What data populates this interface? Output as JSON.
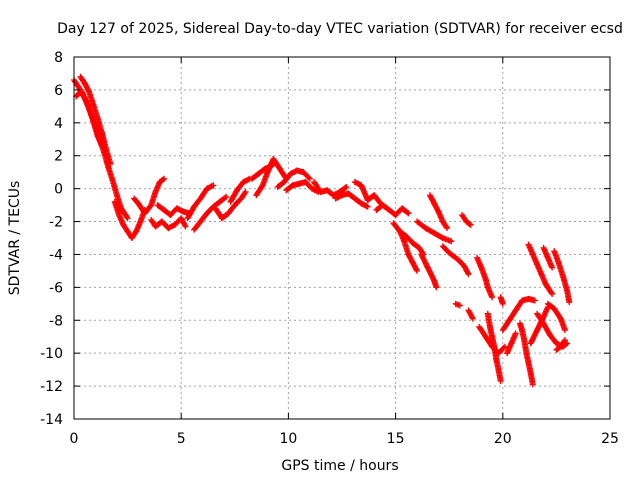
{
  "chart_data": {
    "type": "scatter",
    "title": "Day 127 of 2025, Sidereal Day-to-day VTEC variation (SDTVAR) for receiver ecsd",
    "xlabel": "GPS time / hours",
    "ylabel": "SDTVAR / TECUs",
    "xlim": [
      0,
      25
    ],
    "ylim": [
      -14,
      8
    ],
    "xticks": [
      0,
      5,
      10,
      15,
      20,
      25
    ],
    "yticks": [
      -14,
      -12,
      -10,
      -8,
      -6,
      -4,
      -2,
      0,
      2,
      4,
      6,
      8
    ],
    "grid": true,
    "marker": "+",
    "color": "#ff0000",
    "series": [
      {
        "name": "SDTVAR",
        "tracks": [
          [
            [
              0.0,
              6.6
            ],
            [
              0.2,
              6.2
            ],
            [
              0.4,
              5.8
            ],
            [
              0.6,
              5.2
            ],
            [
              0.8,
              4.5
            ],
            [
              1.0,
              3.8
            ],
            [
              1.2,
              3.0
            ],
            [
              1.4,
              2.2
            ],
            [
              1.6,
              1.3
            ],
            [
              1.8,
              0.5
            ],
            [
              2.0,
              -0.4
            ],
            [
              2.2,
              -1.2
            ],
            [
              2.5,
              -1.8
            ]
          ],
          [
            [
              0.3,
              6.8
            ],
            [
              0.5,
              6.4
            ],
            [
              0.7,
              5.9
            ],
            [
              0.9,
              5.1
            ],
            [
              1.1,
              4.3
            ],
            [
              1.3,
              3.4
            ],
            [
              1.5,
              2.4
            ],
            [
              1.7,
              1.5
            ]
          ],
          [
            [
              0.1,
              5.6
            ],
            [
              0.3,
              5.9
            ],
            [
              0.5,
              5.5
            ],
            [
              0.7,
              4.9
            ],
            [
              0.9,
              4.1
            ],
            [
              1.1,
              3.2
            ],
            [
              1.3,
              2.6
            ]
          ],
          [
            [
              1.9,
              -0.8
            ],
            [
              2.1,
              -1.6
            ],
            [
              2.3,
              -2.2
            ],
            [
              2.5,
              -2.6
            ],
            [
              2.7,
              -3.0
            ],
            [
              2.9,
              -2.6
            ],
            [
              3.1,
              -2.0
            ],
            [
              3.3,
              -1.3
            ]
          ],
          [
            [
              2.8,
              -0.6
            ],
            [
              3.0,
              -0.9
            ],
            [
              3.3,
              -1.5
            ],
            [
              3.6,
              -1.0
            ],
            [
              3.8,
              -0.2
            ],
            [
              4.0,
              0.4
            ],
            [
              4.2,
              0.6
            ]
          ],
          [
            [
              3.6,
              -1.9
            ],
            [
              3.8,
              -2.3
            ],
            [
              4.1,
              -2.0
            ],
            [
              4.4,
              -2.4
            ],
            [
              4.7,
              -2.2
            ],
            [
              5.0,
              -1.8
            ],
            [
              5.2,
              -2.3
            ]
          ],
          [
            [
              3.9,
              -1.0
            ],
            [
              4.2,
              -1.3
            ],
            [
              4.5,
              -1.6
            ],
            [
              4.8,
              -1.2
            ],
            [
              5.1,
              -1.4
            ],
            [
              5.4,
              -1.5
            ]
          ],
          [
            [
              5.3,
              -1.8
            ],
            [
              5.6,
              -1.1
            ],
            [
              5.9,
              -0.6
            ],
            [
              6.2,
              0.0
            ],
            [
              6.5,
              0.2
            ]
          ],
          [
            [
              5.6,
              -2.5
            ],
            [
              5.9,
              -2.0
            ],
            [
              6.2,
              -1.5
            ],
            [
              6.5,
              -1.1
            ],
            [
              6.8,
              -0.8
            ],
            [
              7.1,
              -0.5
            ]
          ],
          [
            [
              6.6,
              -1.2
            ],
            [
              6.9,
              -1.8
            ],
            [
              7.2,
              -1.5
            ],
            [
              7.5,
              -1.0
            ],
            [
              7.8,
              -0.6
            ],
            [
              8.0,
              -0.2
            ]
          ],
          [
            [
              7.3,
              -0.8
            ],
            [
              7.6,
              -0.1
            ],
            [
              7.9,
              0.4
            ],
            [
              8.2,
              0.6
            ]
          ],
          [
            [
              8.3,
              0.6
            ],
            [
              8.6,
              0.9
            ],
            [
              8.9,
              1.2
            ],
            [
              9.2,
              1.4
            ],
            [
              9.4,
              1.6
            ]
          ],
          [
            [
              8.5,
              -0.4
            ],
            [
              8.8,
              0.2
            ],
            [
              9.0,
              0.9
            ],
            [
              9.3,
              1.8
            ],
            [
              9.6,
              1.2
            ],
            [
              9.9,
              0.6
            ]
          ],
          [
            [
              9.5,
              0.1
            ],
            [
              9.8,
              0.4
            ],
            [
              10.1,
              0.9
            ],
            [
              10.4,
              1.1
            ],
            [
              10.7,
              1.0
            ],
            [
              11.0,
              0.6
            ]
          ],
          [
            [
              9.9,
              -0.1
            ],
            [
              10.2,
              0.2
            ],
            [
              10.5,
              0.3
            ],
            [
              10.8,
              0.4
            ],
            [
              11.1,
              0.0
            ],
            [
              11.4,
              -0.2
            ]
          ],
          [
            [
              11.2,
              0.4
            ],
            [
              11.5,
              -0.2
            ],
            [
              11.8,
              -0.1
            ],
            [
              12.1,
              -0.4
            ],
            [
              12.4,
              -0.2
            ],
            [
              12.7,
              0.1
            ]
          ],
          [
            [
              12.2,
              -0.6
            ],
            [
              12.5,
              -0.4
            ],
            [
              12.8,
              -0.3
            ],
            [
              13.1,
              -0.6
            ],
            [
              13.4,
              -0.9
            ],
            [
              13.7,
              -1.1
            ]
          ],
          [
            [
              13.1,
              0.4
            ],
            [
              13.4,
              0.2
            ],
            [
              13.7,
              -0.7
            ],
            [
              14.0,
              -0.4
            ],
            [
              14.3,
              -0.9
            ]
          ],
          [
            [
              14.1,
              -1.3
            ],
            [
              14.4,
              -1.0
            ],
            [
              14.7,
              -1.3
            ],
            [
              15.0,
              -1.6
            ],
            [
              15.3,
              -1.2
            ],
            [
              15.6,
              -1.5
            ]
          ],
          [
            [
              14.9,
              -2.1
            ],
            [
              15.2,
              -2.6
            ],
            [
              15.5,
              -2.9
            ],
            [
              15.8,
              -3.3
            ],
            [
              16.1,
              -3.6
            ],
            [
              16.3,
              -4.0
            ]
          ],
          [
            [
              15.2,
              -2.6
            ],
            [
              15.4,
              -3.2
            ],
            [
              15.6,
              -4.0
            ],
            [
              15.8,
              -4.5
            ],
            [
              16.0,
              -5.0
            ]
          ],
          [
            [
              16.2,
              -4.0
            ],
            [
              16.5,
              -4.8
            ],
            [
              16.8,
              -5.6
            ],
            [
              16.9,
              -6.0
            ]
          ],
          [
            [
              16.0,
              -2.0
            ],
            [
              16.4,
              -2.4
            ],
            [
              16.8,
              -2.7
            ],
            [
              17.2,
              -3.0
            ],
            [
              17.6,
              -3.2
            ]
          ],
          [
            [
              16.6,
              -0.4
            ],
            [
              16.8,
              -0.9
            ],
            [
              17.0,
              -1.4
            ],
            [
              17.2,
              -2.0
            ],
            [
              17.4,
              -2.4
            ]
          ],
          [
            [
              17.2,
              -3.5
            ],
            [
              17.5,
              -3.9
            ],
            [
              17.9,
              -4.3
            ],
            [
              18.2,
              -4.7
            ],
            [
              18.4,
              -5.2
            ]
          ],
          [
            [
              18.1,
              -1.6
            ],
            [
              18.3,
              -2.0
            ],
            [
              18.5,
              -2.2
            ]
          ],
          [
            [
              18.8,
              -4.2
            ],
            [
              19.0,
              -4.8
            ],
            [
              19.2,
              -5.5
            ],
            [
              19.3,
              -6.0
            ],
            [
              19.5,
              -6.6
            ]
          ],
          [
            [
              19.3,
              -7.6
            ],
            [
              19.4,
              -8.4
            ],
            [
              19.5,
              -9.0
            ],
            [
              19.6,
              -9.6
            ],
            [
              19.7,
              -10.4
            ],
            [
              19.8,
              -11.0
            ],
            [
              19.9,
              -11.7
            ]
          ],
          [
            [
              18.9,
              -8.4
            ],
            [
              19.2,
              -9.0
            ],
            [
              19.5,
              -9.6
            ],
            [
              19.8,
              -10.0
            ],
            [
              20.1,
              -9.6
            ]
          ],
          [
            [
              18.4,
              -7.4
            ],
            [
              18.6,
              -7.9
            ]
          ],
          [
            [
              17.8,
              -7.0
            ],
            [
              18.0,
              -7.1
            ]
          ],
          [
            [
              19.9,
              -6.6
            ],
            [
              20.0,
              -7.0
            ]
          ],
          [
            [
              20.0,
              -8.6
            ],
            [
              20.3,
              -8.0
            ],
            [
              20.6,
              -7.4
            ],
            [
              20.9,
              -6.8
            ],
            [
              21.2,
              -6.7
            ],
            [
              21.5,
              -6.8
            ]
          ],
          [
            [
              20.2,
              -10.0
            ],
            [
              20.4,
              -9.4
            ],
            [
              20.6,
              -8.8
            ]
          ],
          [
            [
              20.8,
              -8.2
            ],
            [
              20.9,
              -8.6
            ],
            [
              21.0,
              -9.2
            ],
            [
              21.1,
              -10.0
            ],
            [
              21.2,
              -10.6
            ],
            [
              21.3,
              -11.2
            ],
            [
              21.4,
              -11.9
            ]
          ],
          [
            [
              21.3,
              -9.4
            ],
            [
              21.6,
              -8.6
            ],
            [
              21.9,
              -7.8
            ],
            [
              22.1,
              -7.2
            ]
          ],
          [
            [
              21.2,
              -3.4
            ],
            [
              21.4,
              -4.0
            ],
            [
              21.6,
              -4.6
            ],
            [
              21.8,
              -5.2
            ],
            [
              22.0,
              -5.8
            ],
            [
              22.3,
              -6.4
            ]
          ],
          [
            [
              21.9,
              -3.6
            ],
            [
              22.1,
              -4.2
            ],
            [
              22.3,
              -4.8
            ]
          ],
          [
            [
              22.4,
              -3.8
            ],
            [
              22.6,
              -4.5
            ],
            [
              22.8,
              -5.3
            ],
            [
              23.0,
              -6.2
            ],
            [
              23.1,
              -6.9
            ]
          ],
          [
            [
              21.6,
              -7.6
            ],
            [
              21.9,
              -8.2
            ],
            [
              22.2,
              -8.9
            ],
            [
              22.5,
              -9.4
            ],
            [
              22.8,
              -9.6
            ],
            [
              23.0,
              -9.4
            ]
          ],
          [
            [
              22.1,
              -7.0
            ],
            [
              22.4,
              -7.3
            ],
            [
              22.7,
              -7.9
            ],
            [
              22.9,
              -8.6
            ]
          ],
          [
            [
              22.5,
              -9.8
            ],
            [
              22.7,
              -9.6
            ],
            [
              22.9,
              -9.2
            ]
          ]
        ]
      }
    ]
  }
}
